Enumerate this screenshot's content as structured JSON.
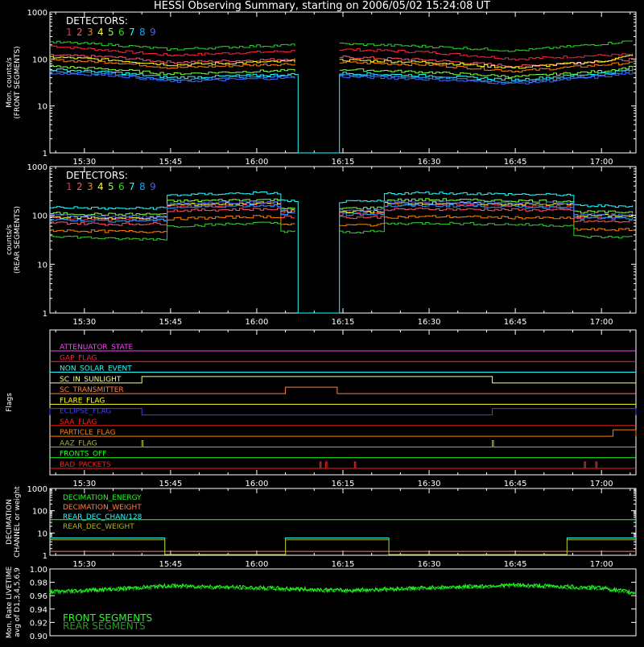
{
  "title": "HESSI Observing Summary, starting on 2006/05/02 15:24:08 UT",
  "time_ticks": [
    "15:30",
    "15:45",
    "16:00",
    "16:15",
    "16:30",
    "16:45",
    "17:00"
  ],
  "detector_colors": [
    "#ff2040",
    "#ff5070",
    "#ff8000",
    "#ffff20",
    "#80ff40",
    "#30d030",
    "#20ffff",
    "#20a0ff",
    "#4060ff"
  ],
  "detector_labels": [
    "1",
    "2",
    "3",
    "4",
    "5",
    "6",
    "7",
    "8",
    "9"
  ],
  "chart_data": [
    {
      "type": "line",
      "name": "front",
      "ylabel": "Mon. counts/s (FRONT SEGMENTS)",
      "ylabel_lines": [
        "Mon. counts/s",
        "(FRONT SEGMENTS)"
      ],
      "legend_title": "DETECTORS:",
      "yscale": "log",
      "ylim": [
        1,
        1000
      ],
      "yticks": [
        "1",
        "10",
        "100",
        "1000"
      ],
      "xlim": [
        "15:24",
        "17:06"
      ],
      "gap": [
        "16:07",
        "16:14"
      ],
      "series": [
        {
          "label": "1",
          "color": "#ff2040",
          "times": [
            "15:24",
            "15:35",
            "15:45",
            "16:00",
            "16:15",
            "16:30",
            "16:45",
            "17:00",
            "17:06"
          ],
          "values": [
            190,
            150,
            120,
            140,
            160,
            140,
            100,
            120,
            125
          ]
        },
        {
          "label": "2",
          "color": "#ff5070",
          "times": [
            "15:24",
            "15:35",
            "15:45",
            "16:00",
            "16:15",
            "16:30",
            "16:45",
            "17:00",
            "17:06"
          ],
          "values": [
            120,
            110,
            85,
            95,
            110,
            95,
            70,
            90,
            100
          ]
        },
        {
          "label": "3",
          "color": "#ff8000",
          "times": [
            "15:24",
            "15:35",
            "15:45",
            "16:00",
            "16:15",
            "16:30",
            "16:45",
            "17:00",
            "17:06"
          ],
          "values": [
            95,
            85,
            65,
            75,
            85,
            75,
            55,
            75,
            85
          ]
        },
        {
          "label": "4",
          "color": "#ffff20",
          "times": [
            "15:24",
            "15:35",
            "15:45",
            "16:00",
            "16:15",
            "16:30",
            "16:45",
            "17:00",
            "17:06"
          ],
          "values": [
            110,
            95,
            75,
            85,
            95,
            85,
            65,
            90,
            125
          ]
        },
        {
          "label": "5",
          "color": "#80ff40",
          "times": [
            "15:24",
            "15:35",
            "15:45",
            "16:00",
            "16:15",
            "16:30",
            "16:45",
            "17:00",
            "17:06"
          ],
          "values": [
            70,
            60,
            48,
            55,
            60,
            52,
            42,
            55,
            70
          ]
        },
        {
          "label": "6",
          "color": "#30d030",
          "times": [
            "15:24",
            "15:35",
            "15:45",
            "16:00",
            "16:15",
            "16:30",
            "16:45",
            "17:00",
            "17:06"
          ],
          "values": [
            230,
            200,
            160,
            190,
            210,
            185,
            150,
            210,
            250
          ]
        },
        {
          "label": "7",
          "color": "#20ffff",
          "times": [
            "15:24",
            "15:35",
            "15:45",
            "16:00",
            "16:15",
            "16:30",
            "16:45",
            "17:00",
            "17:06"
          ],
          "values": [
            60,
            52,
            40,
            45,
            50,
            44,
            36,
            50,
            60
          ]
        },
        {
          "label": "8",
          "color": "#20a0ff",
          "times": [
            "15:24",
            "15:35",
            "15:45",
            "16:00",
            "16:15",
            "16:30",
            "16:45",
            "17:00",
            "17:06"
          ],
          "values": [
            55,
            48,
            36,
            42,
            46,
            40,
            32,
            45,
            58
          ]
        },
        {
          "label": "9",
          "color": "#4060ff",
          "times": [
            "15:24",
            "15:35",
            "15:45",
            "16:00",
            "16:15",
            "16:30",
            "16:45",
            "17:00",
            "17:06"
          ],
          "values": [
            50,
            45,
            33,
            38,
            42,
            37,
            30,
            42,
            52
          ]
        }
      ]
    },
    {
      "type": "line",
      "name": "rear",
      "ylabel": "counts/s (REAR SEGMENTS)",
      "ylabel_lines": [
        "counts/s",
        "(REAR SEGMENTS)"
      ],
      "legend_title": "DETECTORS:",
      "yscale": "log",
      "ylim": [
        1,
        1000
      ],
      "yticks": [
        "1",
        "10",
        "100",
        "1000"
      ],
      "xlim": [
        "15:24",
        "17:06"
      ],
      "gap": [
        "16:07",
        "16:14"
      ],
      "segments": [
        [
          "15:24",
          "15:44"
        ],
        [
          "15:44",
          "16:04"
        ],
        [
          "16:04",
          "16:22"
        ],
        [
          "16:22",
          "16:55"
        ],
        [
          "16:55",
          "17:06"
        ]
      ],
      "segment_offsets": [
        0.55,
        1.0,
        0.7,
        1.0,
        0.6
      ],
      "series": [
        {
          "label": "1",
          "color": "#ff2040",
          "times": [
            "15:24",
            "15:35",
            "15:45",
            "16:00",
            "16:15",
            "16:30",
            "16:45",
            "17:00",
            "17:06"
          ],
          "values": [
            160,
            150,
            150,
            170,
            160,
            170,
            160,
            150,
            150
          ]
        },
        {
          "label": "2",
          "color": "#ff5070",
          "times": [
            "15:24",
            "15:35",
            "15:45",
            "16:00",
            "16:15",
            "16:30",
            "16:45",
            "17:00",
            "17:06"
          ],
          "values": [
            130,
            120,
            125,
            135,
            130,
            135,
            130,
            125,
            125
          ]
        },
        {
          "label": "3",
          "color": "#ff8000",
          "times": [
            "15:24",
            "15:35",
            "15:45",
            "16:00",
            "16:15",
            "16:30",
            "16:45",
            "17:00",
            "17:06"
          ],
          "values": [
            90,
            85,
            85,
            95,
            90,
            95,
            90,
            85,
            85
          ]
        },
        {
          "label": "4",
          "color": "#ffff20",
          "times": [
            "15:24",
            "15:35",
            "15:45",
            "16:00",
            "16:15",
            "16:30",
            "16:45",
            "17:00",
            "17:06"
          ],
          "values": [
            170,
            160,
            165,
            180,
            170,
            180,
            170,
            165,
            165
          ]
        },
        {
          "label": "5",
          "color": "#80ff40",
          "times": [
            "15:24",
            "15:35",
            "15:45",
            "16:00",
            "16:15",
            "16:30",
            "16:45",
            "17:00",
            "17:06"
          ],
          "values": [
            200,
            190,
            195,
            210,
            200,
            210,
            200,
            195,
            195
          ]
        },
        {
          "label": "6",
          "color": "#30d030",
          "times": [
            "15:24",
            "15:35",
            "15:45",
            "16:00",
            "16:15",
            "16:30",
            "16:45",
            "17:00",
            "17:06"
          ],
          "values": [
            70,
            60,
            60,
            70,
            65,
            70,
            65,
            60,
            60
          ]
        },
        {
          "label": "7",
          "color": "#20ffff",
          "times": [
            "15:24",
            "15:35",
            "15:45",
            "16:00",
            "16:15",
            "16:30",
            "16:45",
            "17:00",
            "17:06"
          ],
          "values": [
            270,
            250,
            260,
            290,
            270,
            290,
            270,
            260,
            260
          ]
        },
        {
          "label": "8",
          "color": "#20a0ff",
          "times": [
            "15:24",
            "15:35",
            "15:45",
            "16:00",
            "16:15",
            "16:30",
            "16:45",
            "17:00",
            "17:06"
          ],
          "values": [
            150,
            140,
            145,
            160,
            150,
            160,
            150,
            145,
            145
          ]
        },
        {
          "label": "9",
          "color": "#4060ff",
          "times": [
            "15:24",
            "15:35",
            "15:45",
            "16:00",
            "16:15",
            "16:30",
            "16:45",
            "17:00",
            "17:06"
          ],
          "values": [
            180,
            170,
            175,
            190,
            180,
            190,
            180,
            175,
            175
          ]
        }
      ]
    },
    {
      "type": "step",
      "name": "flags",
      "ylabel": "Flags",
      "xlim": [
        "15:24",
        "17:06"
      ],
      "flags": [
        {
          "label": "ATTENUATOR_STATE",
          "color": "#ff40ff",
          "high": []
        },
        {
          "label": "GAP_FLAG",
          "color": "#ff2040",
          "high": []
        },
        {
          "label": "NON_SOLAR_EVENT",
          "color": "#20ffff",
          "high": []
        },
        {
          "label": "SC_IN_SUNLIGHT",
          "color": "#ffff80",
          "high": [
            [
              "15:40",
              "16:41"
            ]
          ]
        },
        {
          "label": "SC_TRANSMITTER",
          "color": "#ff8040",
          "high": [
            [
              "16:05",
              "16:14"
            ]
          ]
        },
        {
          "label": "FLARE_FLAG",
          "color": "#ffff20",
          "high": []
        },
        {
          "label": "ECLIPSE_FLAG",
          "color": "#4040ff",
          "high": [
            [
              "15:24",
              "15:40"
            ],
            [
              "16:41",
              "17:06"
            ]
          ]
        },
        {
          "label": "SAA_FLAG",
          "color": "#ff2020",
          "high": []
        },
        {
          "label": "PARTICLE_FLAG",
          "color": "#ff8000",
          "high": [
            [
              "17:02",
              "17:06"
            ]
          ]
        },
        {
          "label": "AAZ_FLAG",
          "color": "#b0b020",
          "high": [
            [
              "15:40",
              "15:40"
            ],
            [
              "16:41",
              "16:41"
            ]
          ]
        },
        {
          "label": "FRONTS_OFF",
          "color": "#20ff20",
          "high": []
        },
        {
          "label": "BAD_PACKETS",
          "color": "#ff2020",
          "high": [
            [
              "16:11",
              "16:11"
            ],
            [
              "16:12",
              "16:12"
            ],
            [
              "16:17",
              "16:17"
            ],
            [
              "16:57",
              "16:57"
            ],
            [
              "16:59",
              "16:59"
            ]
          ]
        }
      ]
    },
    {
      "type": "step",
      "name": "decimation",
      "ylabel": "DECIMATION CHANNEL or weight",
      "ylabel_lines": [
        "DECIMATION",
        "CHANNEL or weight"
      ],
      "yscale": "log",
      "ylim": [
        1,
        1000
      ],
      "yticks": [
        "1",
        "10",
        "100",
        "1000"
      ],
      "xlim": [
        "15:24",
        "17:06"
      ],
      "series": [
        {
          "label": "DECIMATION_ENERGY",
          "color": "#20ff20",
          "times": [
            "15:24",
            "17:06"
          ],
          "values": [
            40,
            40
          ]
        },
        {
          "label": "DECIMATION_WEIGHT",
          "color": "#ff8040",
          "times": [
            "15:24",
            "17:06"
          ],
          "values": [
            1.5,
            1.5
          ]
        },
        {
          "label": "REAR_DEC_CHAN/128",
          "color": "#20ffff",
          "times": [
            "15:24",
            "15:44",
            "15:44",
            "16:05",
            "16:05",
            "16:23",
            "16:23",
            "16:54",
            "16:54",
            "17:06"
          ],
          "values": [
            6,
            6,
            1,
            1,
            6,
            6,
            1,
            1,
            6,
            6
          ]
        },
        {
          "label": "REAR_DEC_WEIGHT",
          "color": "#b0b020",
          "times": [
            "15:24",
            "15:44",
            "15:44",
            "16:05",
            "16:05",
            "16:23",
            "16:23",
            "16:54",
            "16:54",
            "17:06"
          ],
          "values": [
            5,
            5,
            1,
            1,
            5,
            5,
            1,
            1,
            5,
            5
          ]
        }
      ]
    },
    {
      "type": "line",
      "name": "livetime",
      "ylabel": "Mon. Rate LIVETIME avg of D1,3,4,5,6,9",
      "ylabel_lines": [
        "Mon. Rate LIVETIME",
        "avg of D1,3,4,5,6,9"
      ],
      "ylim": [
        0.9,
        1.0
      ],
      "yticks": [
        "0.90",
        "0.92",
        "0.94",
        "0.96",
        "0.98",
        "1.00"
      ],
      "xlim": [
        "15:24",
        "17:06"
      ],
      "series": [
        {
          "label": "FRONT SEGMENTS",
          "color": "#20ff20",
          "times": [
            "15:24",
            "15:35",
            "15:45",
            "16:00",
            "16:15",
            "16:30",
            "16:45",
            "17:00",
            "17:06"
          ],
          "values": [
            0.966,
            0.97,
            0.975,
            0.972,
            0.968,
            0.972,
            0.976,
            0.972,
            0.964
          ]
        },
        {
          "label": "REAR SEGMENTS",
          "color": "#20a020",
          "times": [
            "15:24",
            "15:35",
            "15:45",
            "16:00",
            "16:15",
            "16:30",
            "16:45",
            "17:00",
            "17:06"
          ],
          "values": [
            0.965,
            0.969,
            0.974,
            0.971,
            0.967,
            0.971,
            0.975,
            0.971,
            0.963
          ]
        }
      ]
    }
  ]
}
